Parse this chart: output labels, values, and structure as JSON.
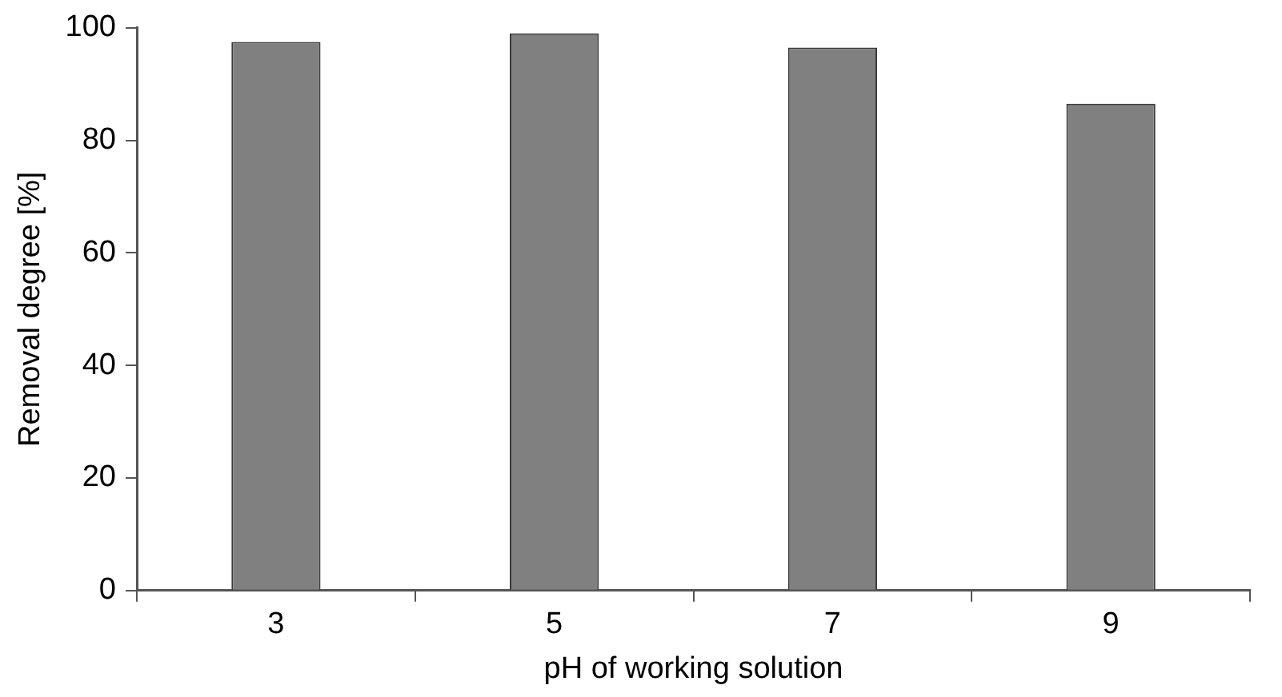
{
  "chart_data": {
    "type": "bar",
    "xlabel": "pH of working solution",
    "ylabel": "Removal degree [%]",
    "categories": [
      "3",
      "5",
      "7",
      "9"
    ],
    "values": [
      97.5,
      99,
      96.5,
      86.5
    ],
    "color": "#808080",
    "ylim": [
      0,
      100
    ],
    "yticks": [
      0,
      20,
      40,
      60,
      80,
      100
    ],
    "grid": false
  }
}
